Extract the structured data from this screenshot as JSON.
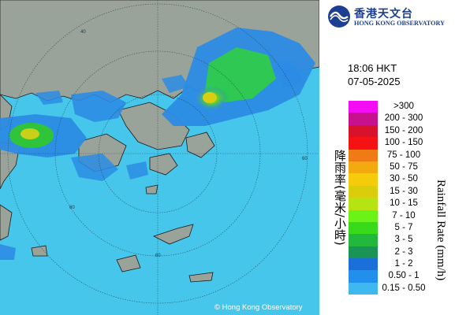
{
  "header": {
    "org_name_cn": "香港天文台",
    "org_name_en": "HONG KONG OBSERVATORY"
  },
  "timestamp": {
    "time": "18:06 HKT",
    "date": "07-05-2025"
  },
  "legend": {
    "title_cn": "降雨率(毫米/小時)",
    "title_en": "Rainfall Rate (mm/h)",
    "items": [
      {
        "label": ">300",
        "color": "#f40cf4"
      },
      {
        "label": "200 - 300",
        "color": "#c8118e"
      },
      {
        "label": "150 - 200",
        "color": "#d9122c"
      },
      {
        "label": "100 - 150",
        "color": "#f41212"
      },
      {
        "label": "75 - 100",
        "color": "#f07a16"
      },
      {
        "label": "50 - 75",
        "color": "#f2aa10"
      },
      {
        "label": "30 - 50",
        "color": "#f6cb0b"
      },
      {
        "label": "15 - 30",
        "color": "#dccd0c"
      },
      {
        "label": "10 - 15",
        "color": "#b7e312"
      },
      {
        "label": "7 - 10",
        "color": "#6bf315"
      },
      {
        "label": "5 - 7",
        "color": "#3ad91a"
      },
      {
        "label": "3 - 5",
        "color": "#22b83c"
      },
      {
        "label": "2 - 3",
        "color": "#1a9456"
      },
      {
        "label": "1 - 2",
        "color": "#1a6fd8"
      },
      {
        "label": "0.50 - 1",
        "color": "#228fec"
      },
      {
        "label": "0.15 - 0.50",
        "color": "#3fb8f0"
      }
    ]
  },
  "map": {
    "ring_labels": [
      "40",
      "60",
      "60",
      "60"
    ],
    "sea_color": "#46c6ea",
    "land_color": "#9aa39a",
    "copyright": "© Hong Kong Observatory"
  }
}
